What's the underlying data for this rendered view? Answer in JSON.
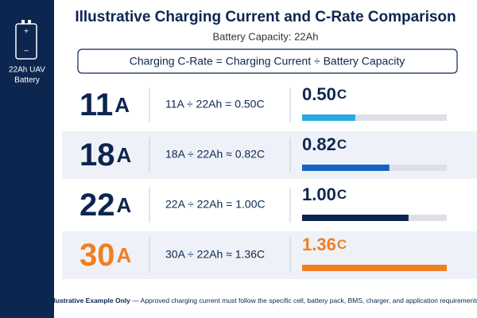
{
  "sidebar": {
    "label_lines": [
      "22Ah UAV",
      "Battery"
    ]
  },
  "header": {
    "title": "Illustrative Charging Current and C-Rate Comparison",
    "subtitle": "Battery Capacity: 22Ah",
    "formula": "Charging C-Rate = Charging Current ÷ Battery Capacity"
  },
  "rows": [
    {
      "current": "11",
      "current_unit": "A",
      "formula": "11A ÷ 22Ah = 0.50C",
      "c_rate": {
        "value": 0.5,
        "label": "0.50"
      },
      "c_rate_unit": "C",
      "color": "#29a8e0",
      "text_color": "#0d2650"
    },
    {
      "current": "18",
      "current_unit": "A",
      "formula": "18A ÷ 22Ah ≈ 0.82C",
      "c_rate": {
        "value": 0.82,
        "label": "0.82"
      },
      "c_rate_unit": "C",
      "color": "#1565c0",
      "text_color": "#0d2650"
    },
    {
      "current": "22",
      "current_unit": "A",
      "formula": "22A ÷ 22Ah = 1.00C",
      "c_rate": {
        "value": 1.0,
        "label": "1.00"
      },
      "c_rate_unit": "C",
      "color": "#0d2650",
      "text_color": "#0d2650"
    },
    {
      "current": "30",
      "current_unit": "A",
      "formula": "30A ÷ 22Ah ≈ 1.36C",
      "c_rate": {
        "value": 1.36,
        "label": "1.36"
      },
      "c_rate_unit": "C",
      "color": "#f07f22",
      "text_color": "#f07f22"
    }
  ],
  "footer": {
    "bold": "Illustrative Example Only",
    "text": " — Approved charging current must follow the specific cell, battery pack, BMS, charger, and application requirements."
  }
}
